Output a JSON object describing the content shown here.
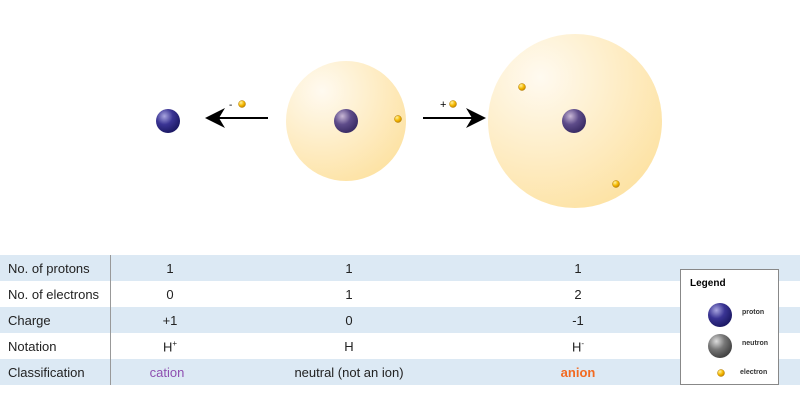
{
  "diagram": {
    "remove_electron_label": "-",
    "add_electron_label": "+"
  },
  "table": {
    "rows": [
      {
        "label": "No. of protons",
        "values": [
          "1",
          "1",
          "1"
        ]
      },
      {
        "label": "No. of electrons",
        "values": [
          "0",
          "1",
          "2"
        ]
      },
      {
        "label": "Charge",
        "values": [
          "+1",
          "0",
          "-1"
        ]
      },
      {
        "label": "Notation",
        "values": [
          "H",
          "H",
          "H"
        ],
        "superscripts": [
          "+",
          "",
          "-"
        ]
      },
      {
        "label": "Classification",
        "values": [
          "cation",
          "neutral (not an ion)",
          "anion"
        ]
      }
    ]
  },
  "legend": {
    "title": "Legend",
    "items": [
      "proton",
      "neutron",
      "electron"
    ]
  },
  "colors": {
    "cation": "#8e4fb0",
    "anion": "#f26a21",
    "row_blue": "#dce9f4",
    "proton": "#2e2a8a",
    "neutron": "#666666",
    "electron": "#f5b800",
    "cloud": "#fde9b8"
  }
}
